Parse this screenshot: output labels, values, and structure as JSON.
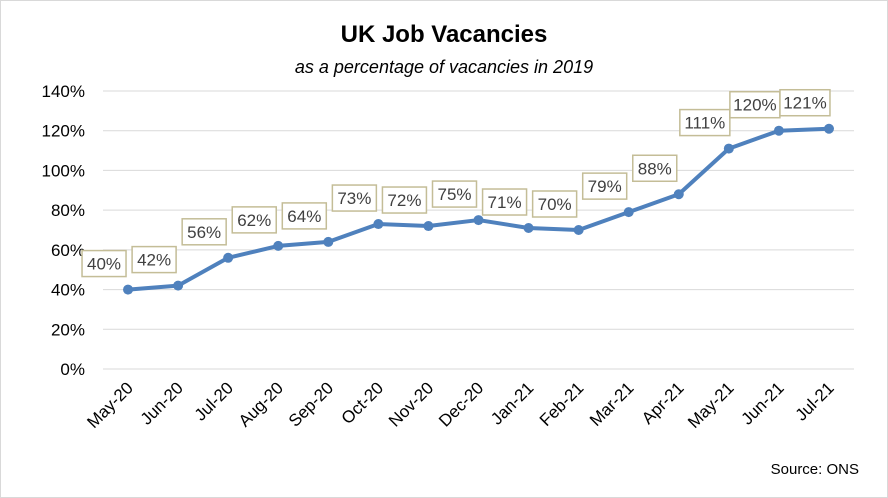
{
  "chart_data": {
    "type": "line",
    "title": "UK Job Vacancies",
    "subtitle": "as a percentage of vacancies in 2019",
    "source": "Source: ONS",
    "categories": [
      "May-20",
      "Jun-20",
      "Jul-20",
      "Aug-20",
      "Sep-20",
      "Oct-20",
      "Nov-20",
      "Dec-20",
      "Jan-21",
      "Feb-21",
      "Mar-21",
      "Apr-21",
      "May-21",
      "Jun-21",
      "Jul-21"
    ],
    "values": [
      40,
      42,
      56,
      62,
      64,
      73,
      72,
      75,
      71,
      70,
      79,
      88,
      111,
      120,
      121
    ],
    "data_labels": [
      "40%",
      "42%",
      "56%",
      "62%",
      "64%",
      "73%",
      "72%",
      "75%",
      "71%",
      "70%",
      "79%",
      "88%",
      "111%",
      "120%",
      "121%"
    ],
    "ylim": [
      0,
      140
    ],
    "yticks": [
      0,
      20,
      40,
      60,
      80,
      100,
      120,
      140
    ],
    "ytick_labels": [
      "0%",
      "20%",
      "40%",
      "60%",
      "80%",
      "100%",
      "120%",
      "140%"
    ],
    "grid": true,
    "legend": "none",
    "colors": {
      "line": "#4f81bd",
      "label_border": "#c4bd97",
      "grid": "#d9d9d9",
      "text": "#404040"
    }
  }
}
